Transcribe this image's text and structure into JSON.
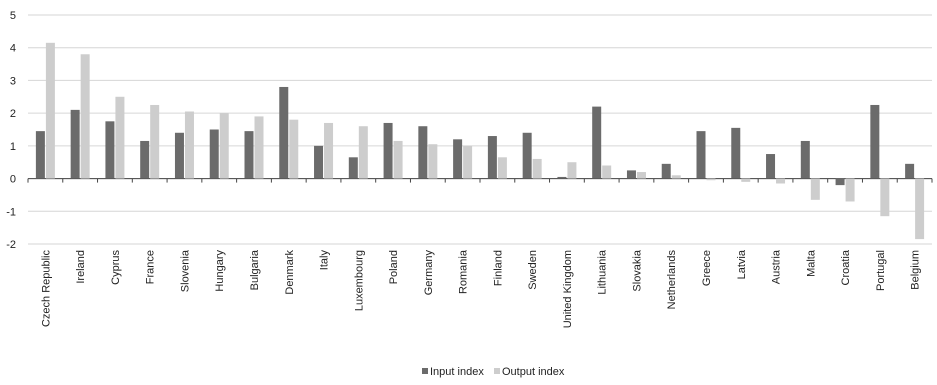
{
  "chart_data": {
    "type": "bar",
    "title": "",
    "xlabel": "",
    "ylabel": "",
    "ylim": [
      -2,
      5
    ],
    "yticks": [
      -2,
      -1,
      0,
      1,
      2,
      3,
      4,
      5
    ],
    "grid": true,
    "legend_position": "bottom-center",
    "categories": [
      "Czech Republic",
      "Ireland",
      "Cyprus",
      "France",
      "Slovenia",
      "Hungary",
      "Bulgaria",
      "Denmark",
      "Italy",
      "Luxembourg",
      "Poland",
      "Germany",
      "Romania",
      "Finland",
      "Sweden",
      "United Kingdom",
      "Lithuania",
      "Slovakia",
      "Netherlands",
      "Greece",
      "Latvia",
      "Austria",
      "Malta",
      "Croatia",
      "Portugal",
      "Belgium"
    ],
    "series": [
      {
        "name": "Input index",
        "color": "#6b6b6b",
        "values": [
          1.45,
          2.1,
          1.75,
          1.15,
          1.4,
          1.5,
          1.45,
          2.8,
          1.0,
          0.65,
          1.7,
          1.6,
          1.2,
          1.3,
          1.4,
          0.05,
          2.2,
          0.25,
          0.45,
          1.45,
          1.55,
          0.75,
          1.15,
          -0.2,
          2.25,
          0.45
        ]
      },
      {
        "name": "Output index",
        "color": "#cdcdcd",
        "values": [
          4.15,
          3.8,
          2.5,
          2.25,
          2.05,
          2.0,
          1.9,
          1.8,
          1.7,
          1.6,
          1.15,
          1.05,
          1.0,
          0.65,
          0.6,
          0.5,
          0.4,
          0.2,
          0.1,
          -0.05,
          -0.1,
          -0.15,
          -0.65,
          -0.7,
          -1.15,
          -1.85
        ]
      }
    ]
  }
}
